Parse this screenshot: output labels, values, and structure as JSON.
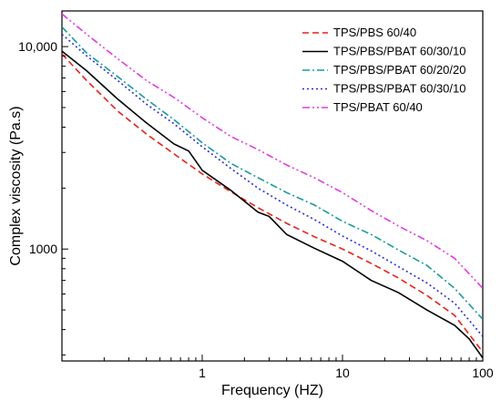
{
  "chart_data": {
    "type": "line",
    "title": "",
    "xlabel": "Frequency (HZ)",
    "ylabel": "Complex viscosity (Pa.s)",
    "xscale": "log",
    "yscale": "log",
    "xlim": [
      0.1,
      100
    ],
    "ylim": [
      280,
      15000
    ],
    "grid": false,
    "legend_position": "top-right",
    "x_ticks": [
      {
        "value": 1,
        "label": "1"
      },
      {
        "value": 10,
        "label": "10"
      },
      {
        "value": 100,
        "label": "100"
      }
    ],
    "y_ticks": [
      {
        "value": 1000,
        "label": "1000"
      },
      {
        "value": 10000,
        "label": "10,000"
      }
    ],
    "series": [
      {
        "name": "TPS/PBS 60/40",
        "color": "#e8201c",
        "dash": "dashed",
        "points": [
          [
            0.1,
            9200
          ],
          [
            0.15,
            6800
          ],
          [
            0.25,
            4800
          ],
          [
            0.4,
            3700
          ],
          [
            0.63,
            2950
          ],
          [
            1,
            2350
          ],
          [
            1.6,
            1920
          ],
          [
            2.5,
            1600
          ],
          [
            4,
            1340
          ],
          [
            6.3,
            1150
          ],
          [
            10,
            1000
          ],
          [
            16,
            850
          ],
          [
            25,
            720
          ],
          [
            40,
            590
          ],
          [
            63,
            470
          ],
          [
            100,
            310
          ]
        ]
      },
      {
        "name": "TPS/PBS/PBAT 60/30/10",
        "color": "#000000",
        "dash": "solid",
        "points": [
          [
            0.1,
            9500
          ],
          [
            0.15,
            7600
          ],
          [
            0.25,
            5500
          ],
          [
            0.4,
            4200
          ],
          [
            0.63,
            3300
          ],
          [
            0.8,
            3050
          ],
          [
            1,
            2450
          ],
          [
            1.6,
            1950
          ],
          [
            2.5,
            1520
          ],
          [
            3,
            1450
          ],
          [
            4,
            1180
          ],
          [
            6.3,
            1010
          ],
          [
            10,
            870
          ],
          [
            16,
            700
          ],
          [
            25,
            610
          ],
          [
            40,
            500
          ],
          [
            63,
            420
          ],
          [
            80,
            360
          ],
          [
            100,
            290
          ]
        ]
      },
      {
        "name": "TPS/PBS/PBAT 60/20/20",
        "color": "#1a9a9a",
        "dash": "dashdot",
        "points": [
          [
            0.1,
            12500
          ],
          [
            0.15,
            9300
          ],
          [
            0.25,
            7100
          ],
          [
            0.4,
            5500
          ],
          [
            0.63,
            4350
          ],
          [
            1,
            3350
          ],
          [
            1.6,
            2650
          ],
          [
            2.5,
            2250
          ],
          [
            4,
            1900
          ],
          [
            6.3,
            1650
          ],
          [
            10,
            1370
          ],
          [
            16,
            1180
          ],
          [
            25,
            990
          ],
          [
            40,
            830
          ],
          [
            63,
            640
          ],
          [
            100,
            450
          ]
        ]
      },
      {
        "name": "TPS/PBS/PBAT 60/30/10",
        "color": "#2b2bd8",
        "dash": "dotted",
        "points": [
          [
            0.1,
            11500
          ],
          [
            0.15,
            9000
          ],
          [
            0.25,
            6800
          ],
          [
            0.4,
            5200
          ],
          [
            0.63,
            4150
          ],
          [
            1,
            3200
          ],
          [
            1.6,
            2500
          ],
          [
            2.5,
            2000
          ],
          [
            4,
            1650
          ],
          [
            6.3,
            1400
          ],
          [
            10,
            1160
          ],
          [
            16,
            980
          ],
          [
            25,
            820
          ],
          [
            40,
            680
          ],
          [
            63,
            540
          ],
          [
            100,
            370
          ]
        ]
      },
      {
        "name": "TPS/PBAT 60/40",
        "color": "#e03ce0",
        "dash": "dashdotdot",
        "points": [
          [
            0.1,
            14500
          ],
          [
            0.15,
            11500
          ],
          [
            0.25,
            8700
          ],
          [
            0.4,
            6800
          ],
          [
            0.63,
            5600
          ],
          [
            1,
            4450
          ],
          [
            1.6,
            3600
          ],
          [
            2.5,
            3100
          ],
          [
            4,
            2600
          ],
          [
            6.3,
            2250
          ],
          [
            10,
            1900
          ],
          [
            16,
            1550
          ],
          [
            25,
            1300
          ],
          [
            40,
            1100
          ],
          [
            63,
            900
          ],
          [
            100,
            640
          ]
        ]
      }
    ]
  }
}
